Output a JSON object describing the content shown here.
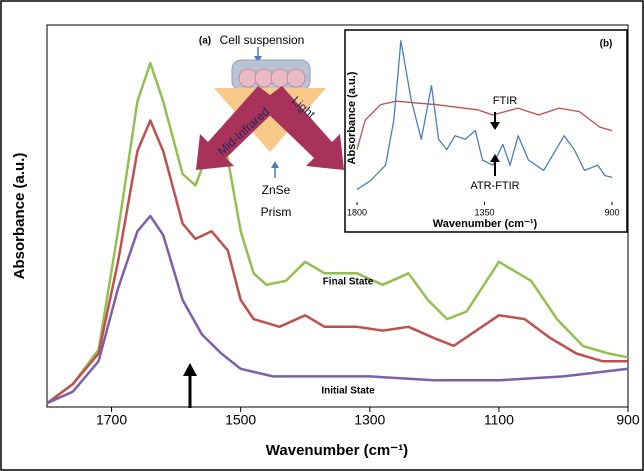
{
  "chart_data": [
    {
      "type": "line",
      "xlabel": "Wavenumber (cm⁻¹)",
      "ylabel": "Absorbance (a.u.)",
      "xlim": [
        1800,
        900
      ],
      "xticks": [
        1700,
        1500,
        1300,
        1100,
        900
      ],
      "ylim": [
        0,
        1
      ],
      "annotations": [
        "(a)",
        "Cell suspension",
        "Mid-Infrared",
        "Light",
        "ZnSe",
        "Prism"
      ],
      "series": [
        {
          "name": "Final State",
          "color": "#92c050",
          "x": [
            1800,
            1760,
            1720,
            1690,
            1660,
            1640,
            1620,
            1590,
            1570,
            1550,
            1535,
            1520,
            1500,
            1480,
            1460,
            1430,
            1400,
            1370,
            1320,
            1280,
            1240,
            1210,
            1180,
            1150,
            1100,
            1050,
            1010,
            970,
            930,
            900
          ],
          "values": [
            0.01,
            0.06,
            0.15,
            0.46,
            0.8,
            0.9,
            0.8,
            0.61,
            0.58,
            0.67,
            0.69,
            0.65,
            0.46,
            0.35,
            0.32,
            0.33,
            0.38,
            0.35,
            0.35,
            0.32,
            0.35,
            0.28,
            0.23,
            0.25,
            0.38,
            0.33,
            0.23,
            0.16,
            0.14,
            0.13
          ]
        },
        {
          "color": "#c0504d",
          "x": [
            1800,
            1760,
            1720,
            1690,
            1660,
            1640,
            1620,
            1590,
            1570,
            1545,
            1520,
            1500,
            1480,
            1440,
            1400,
            1370,
            1320,
            1280,
            1240,
            1200,
            1170,
            1100,
            1060,
            1020,
            980,
            940,
            900
          ],
          "values": [
            0.01,
            0.06,
            0.14,
            0.38,
            0.67,
            0.75,
            0.67,
            0.48,
            0.44,
            0.46,
            0.41,
            0.28,
            0.23,
            0.21,
            0.24,
            0.21,
            0.21,
            0.2,
            0.21,
            0.18,
            0.16,
            0.24,
            0.23,
            0.18,
            0.14,
            0.12,
            0.12
          ]
        },
        {
          "name": "Initial State",
          "color": "#7f5fa8",
          "x": [
            1800,
            1760,
            1720,
            1690,
            1660,
            1640,
            1620,
            1590,
            1560,
            1530,
            1500,
            1450,
            1300,
            1200,
            1100,
            1000,
            950,
            900
          ],
          "values": [
            0.01,
            0.04,
            0.12,
            0.31,
            0.46,
            0.5,
            0.45,
            0.28,
            0.19,
            0.14,
            0.1,
            0.08,
            0.08,
            0.07,
            0.07,
            0.08,
            0.09,
            0.1
          ]
        }
      ]
    },
    {
      "type": "line",
      "title": "(b)",
      "xlabel": "Wavenumber (cm⁻¹)",
      "ylabel": "Absorbance (a.u.)",
      "xlim": [
        1800,
        900
      ],
      "xticks": [
        1800,
        1350,
        900
      ],
      "ylim": [
        0,
        1
      ],
      "series": [
        {
          "name": "FTIR",
          "color": "#c0504d",
          "x": [
            1800,
            1771,
            1717,
            1663,
            1519,
            1375,
            1321,
            1231,
            1159,
            1087,
            1015,
            943,
            900
          ],
          "values": [
            0.32,
            0.49,
            0.58,
            0.6,
            0.58,
            0.55,
            0.52,
            0.56,
            0.52,
            0.56,
            0.54,
            0.45,
            0.43
          ]
        },
        {
          "name": "ATR-FTIR",
          "color": "#4a7ebb",
          "x": [
            1800,
            1753,
            1699,
            1670,
            1645,
            1609,
            1573,
            1537,
            1512,
            1483,
            1454,
            1418,
            1382,
            1357,
            1321,
            1285,
            1260,
            1231,
            1195,
            1141,
            1069,
            1033,
            997,
            950,
            925,
            900
          ],
          "values": [
            0.09,
            0.14,
            0.23,
            0.49,
            0.95,
            0.61,
            0.38,
            0.69,
            0.38,
            0.32,
            0.4,
            0.38,
            0.43,
            0.26,
            0.23,
            0.35,
            0.23,
            0.4,
            0.26,
            0.2,
            0.4,
            0.32,
            0.2,
            0.23,
            0.17,
            0.16
          ]
        }
      ]
    }
  ]
}
